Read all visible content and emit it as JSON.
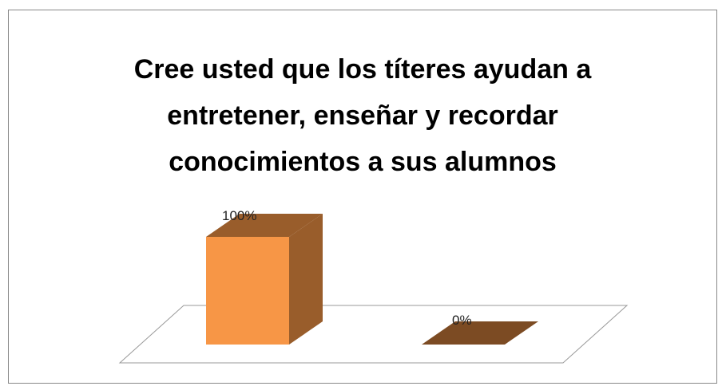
{
  "chart_data": {
    "type": "bar3d",
    "title": "Cree usted que los títeres ayudan a entretener, enseñar y recordar conocimientos a sus alumnos",
    "categories": [
      null,
      null
    ],
    "values": [
      100,
      0
    ],
    "value_labels": [
      "100%",
      "0%"
    ],
    "colors": [
      "#f79646",
      "#f79646"
    ]
  }
}
